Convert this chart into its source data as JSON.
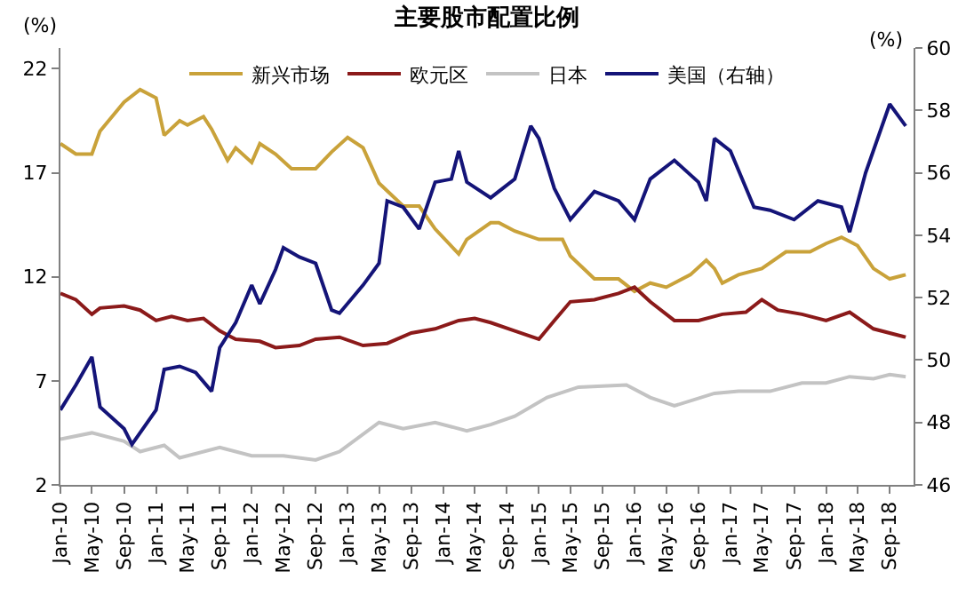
{
  "chart_data": {
    "type": "line",
    "title": "主要股市配置比例",
    "ylabel": "(%)",
    "y2label": "(%)",
    "series": [
      {
        "name": "新兴市场",
        "color": "#c9a23a",
        "x": [
          "2010-01",
          "2010-03",
          "2010-05",
          "2010-06",
          "2010-09",
          "2010-11",
          "2011-01",
          "2011-02",
          "2011-04",
          "2011-05",
          "2011-07",
          "2011-08",
          "2011-10",
          "2011-11",
          "2012-01",
          "2012-02",
          "2012-04",
          "2012-06",
          "2012-09",
          "2012-11",
          "2013-01",
          "2013-03",
          "2013-05",
          "2013-08",
          "2013-10",
          "2013-12",
          "2014-03",
          "2014-04",
          "2014-07",
          "2014-08",
          "2014-10",
          "2015-01",
          "2015-04",
          "2015-05",
          "2015-08",
          "2015-11",
          "2016-01",
          "2016-03",
          "2016-05",
          "2016-08",
          "2016-10",
          "2016-11",
          "2016-12",
          "2017-02",
          "2017-05",
          "2017-08",
          "2017-11",
          "2018-01",
          "2018-03",
          "2018-05",
          "2018-07",
          "2018-09",
          "2018-11"
        ],
        "values": [
          18.4,
          17.9,
          17.9,
          19.0,
          20.4,
          21.0,
          20.6,
          18.8,
          19.5,
          19.3,
          19.7,
          19.1,
          17.6,
          18.2,
          17.5,
          18.4,
          17.9,
          17.2,
          17.2,
          18.0,
          18.7,
          18.2,
          16.5,
          15.4,
          15.4,
          14.3,
          13.1,
          13.8,
          14.6,
          14.6,
          14.2,
          13.8,
          13.8,
          13.0,
          11.9,
          11.9,
          11.3,
          11.7,
          11.5,
          12.1,
          12.8,
          12.4,
          11.7,
          12.1,
          12.4,
          13.2,
          13.2,
          13.6,
          13.9,
          13.5,
          12.4,
          11.9,
          12.1
        ]
      },
      {
        "name": "欧元区",
        "color": "#8b1a1a",
        "x": [
          "2010-01",
          "2010-03",
          "2010-05",
          "2010-06",
          "2010-09",
          "2010-11",
          "2011-01",
          "2011-03",
          "2011-05",
          "2011-07",
          "2011-09",
          "2011-11",
          "2012-02",
          "2012-04",
          "2012-07",
          "2012-09",
          "2012-12",
          "2013-03",
          "2013-06",
          "2013-09",
          "2013-12",
          "2014-03",
          "2014-05",
          "2014-07",
          "2014-10",
          "2015-01",
          "2015-03",
          "2015-05",
          "2015-08",
          "2015-11",
          "2016-01",
          "2016-03",
          "2016-06",
          "2016-09",
          "2016-12",
          "2017-03",
          "2017-05",
          "2017-07",
          "2017-10",
          "2018-01",
          "2018-04",
          "2018-07",
          "2018-11"
        ],
        "values": [
          11.2,
          10.9,
          10.2,
          10.5,
          10.6,
          10.4,
          9.9,
          10.1,
          9.9,
          10.0,
          9.4,
          9.0,
          8.9,
          8.6,
          8.7,
          9.0,
          9.1,
          8.7,
          8.8,
          9.3,
          9.5,
          9.9,
          10.0,
          9.8,
          9.4,
          9.0,
          9.9,
          10.8,
          10.9,
          11.2,
          11.5,
          10.8,
          9.9,
          9.9,
          10.2,
          10.3,
          10.9,
          10.4,
          10.2,
          9.9,
          10.3,
          9.5,
          9.1
        ]
      },
      {
        "name": "日本",
        "color": "#c3c3c3",
        "x": [
          "2010-01",
          "2010-05",
          "2010-09",
          "2010-11",
          "2011-02",
          "2011-04",
          "2011-09",
          "2012-01",
          "2012-05",
          "2012-09",
          "2012-12",
          "2013-05",
          "2013-08",
          "2013-12",
          "2014-04",
          "2014-07",
          "2014-10",
          "2015-02",
          "2015-06",
          "2015-12",
          "2016-03",
          "2016-06",
          "2016-11",
          "2017-02",
          "2017-06",
          "2017-10",
          "2018-01",
          "2018-04",
          "2018-07",
          "2018-09",
          "2018-11"
        ],
        "values": [
          4.2,
          4.5,
          4.1,
          3.6,
          3.9,
          3.3,
          3.8,
          3.4,
          3.4,
          3.2,
          3.6,
          5.0,
          4.7,
          5.0,
          4.6,
          4.9,
          5.3,
          6.2,
          6.7,
          6.8,
          6.2,
          5.8,
          6.4,
          6.5,
          6.5,
          6.9,
          6.9,
          7.2,
          7.1,
          7.3,
          7.2
        ]
      },
      {
        "name": "美国（右轴）",
        "color": "#141478",
        "axis": "y2",
        "x": [
          "2010-01",
          "2010-03",
          "2010-05",
          "2010-06",
          "2010-09",
          "2010-10",
          "2011-01",
          "2011-02",
          "2011-04",
          "2011-06",
          "2011-08",
          "2011-09",
          "2011-11",
          "2012-01",
          "2012-02",
          "2012-04",
          "2012-05",
          "2012-07",
          "2012-09",
          "2012-11",
          "2012-12",
          "2013-03",
          "2013-05",
          "2013-06",
          "2013-08",
          "2013-10",
          "2013-12",
          "2014-02",
          "2014-03",
          "2014-04",
          "2014-07",
          "2014-10",
          "2014-12",
          "2015-01",
          "2015-03",
          "2015-05",
          "2015-08",
          "2015-11",
          "2016-01",
          "2016-03",
          "2016-06",
          "2016-09",
          "2016-10",
          "2016-11",
          "2017-01",
          "2017-04",
          "2017-06",
          "2017-09",
          "2017-12",
          "2018-03",
          "2018-04",
          "2018-06",
          "2018-09",
          "2018-11"
        ],
        "values": [
          48.4,
          49.2,
          50.1,
          48.5,
          47.8,
          47.3,
          48.4,
          49.7,
          49.8,
          49.6,
          49.0,
          50.4,
          51.2,
          52.4,
          51.8,
          52.9,
          53.6,
          53.3,
          53.1,
          51.6,
          51.5,
          52.4,
          53.1,
          55.1,
          54.9,
          54.2,
          55.7,
          55.8,
          56.7,
          55.7,
          55.2,
          55.8,
          57.5,
          57.1,
          55.5,
          54.5,
          55.4,
          55.1,
          54.5,
          55.8,
          56.4,
          55.7,
          55.1,
          57.1,
          56.7,
          54.9,
          54.8,
          54.5,
          55.1,
          54.9,
          54.1,
          56.0,
          58.2,
          57.5
        ]
      }
    ],
    "xlim": [
      "2010-01",
      "2018-12"
    ],
    "xticks": [
      {
        "value": "2010-01",
        "label": "Jan-10"
      },
      {
        "value": "2010-05",
        "label": "May-10"
      },
      {
        "value": "2010-09",
        "label": "Sep-10"
      },
      {
        "value": "2011-01",
        "label": "Jan-11"
      },
      {
        "value": "2011-05",
        "label": "May-11"
      },
      {
        "value": "2011-09",
        "label": "Sep-11"
      },
      {
        "value": "2012-01",
        "label": "Jan-12"
      },
      {
        "value": "2012-05",
        "label": "May-12"
      },
      {
        "value": "2012-09",
        "label": "Sep-12"
      },
      {
        "value": "2013-01",
        "label": "Jan-13"
      },
      {
        "value": "2013-05",
        "label": "May-13"
      },
      {
        "value": "2013-09",
        "label": "Sep-13"
      },
      {
        "value": "2014-01",
        "label": "Jan-14"
      },
      {
        "value": "2014-05",
        "label": "May-14"
      },
      {
        "value": "2014-09",
        "label": "Sep-14"
      },
      {
        "value": "2015-01",
        "label": "Jan-15"
      },
      {
        "value": "2015-05",
        "label": "May-15"
      },
      {
        "value": "2015-09",
        "label": "Sep-15"
      },
      {
        "value": "2016-01",
        "label": "Jan-16"
      },
      {
        "value": "2016-05",
        "label": "May-16"
      },
      {
        "value": "2016-09",
        "label": "Sep-16"
      },
      {
        "value": "2017-01",
        "label": "Jan-17"
      },
      {
        "value": "2017-05",
        "label": "May-17"
      },
      {
        "value": "2017-09",
        "label": "Sep-17"
      },
      {
        "value": "2018-01",
        "label": "Jan-18"
      },
      {
        "value": "2018-05",
        "label": "May-18"
      },
      {
        "value": "2018-09",
        "label": "Sep-18"
      }
    ],
    "ylim": [
      2,
      23
    ],
    "yticks": [
      2,
      7,
      12,
      17,
      22
    ],
    "y2lim": [
      46,
      60
    ],
    "y2ticks": [
      46,
      48,
      50,
      52,
      54,
      56,
      58,
      60
    ],
    "legend": "top",
    "marker": "none",
    "line_style": "solid"
  }
}
